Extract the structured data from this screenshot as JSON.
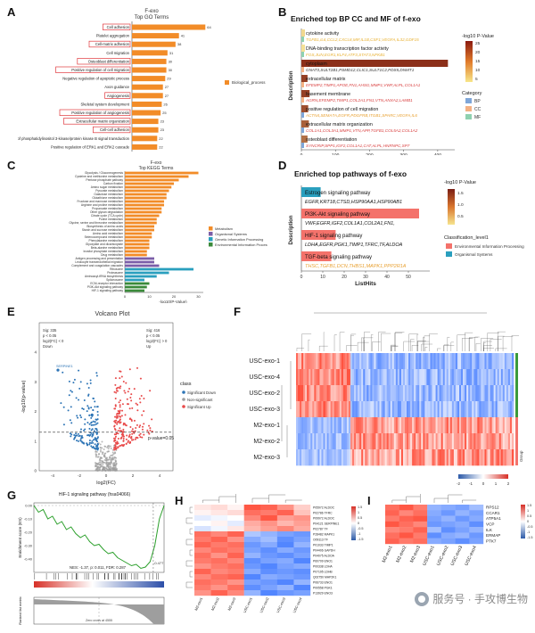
{
  "panel_labels": {
    "A": "A",
    "B": "B",
    "C": "C",
    "D": "D",
    "E": "E",
    "F": "F",
    "G": "G",
    "H": "H",
    "I": "I"
  },
  "watermark": "服务号 · 手攻博生物",
  "chart_data": [
    {
      "id": "A",
      "type": "bar",
      "title": "F-exo\nTop GO Terms",
      "legend": [
        "Biological_process"
      ],
      "color": "#f28c28",
      "categories": [
        "Cell adhesion",
        "Platelet aggregation",
        "Cell-matrix adhesion",
        "Cell migration",
        "Osteoblast differentiation",
        "Positive regulation of cell migration",
        "Negative regulation of apoptotic process",
        "Axon guidance",
        "Angiogenesis",
        "Skeletal system development",
        "Positive regulation of angiogenesis",
        "Extracellular matrix organization",
        "Cell-cell adhesion",
        "Regulation of phosphatidylinositol 3-kinase/protein kinase B signal transduction",
        "Positive regulation of ERK1 and ERK2 cascade"
      ],
      "values": [
        64,
        41,
        38,
        31,
        30,
        30,
        29,
        27,
        27,
        26,
        25,
        23,
        23,
        22,
        22
      ],
      "boxed": [
        0,
        2,
        4,
        5,
        8,
        10,
        11,
        12
      ]
    },
    {
      "id": "B",
      "type": "bar",
      "title": "Enriched top BP CC and MF of f-exo",
      "xlabel": "ListHits",
      "ylabel": "Description",
      "xlim": [
        0,
        450
      ],
      "xticks": [
        0,
        100,
        200,
        300,
        400
      ],
      "legend_title": "-log10 P-Value",
      "legend_ticks": [
        "25",
        "20",
        "15",
        "10",
        "5"
      ],
      "category_title": "Category",
      "category_labels": [
        "BP",
        "CC",
        "MF"
      ],
      "category_colors": [
        "#7fa6d8",
        "#f4b183",
        "#8fd1b0"
      ],
      "terms": [
        "cytokine activity",
        "DNA-binding transcription factor activity",
        "cytoplasm",
        "extracellular matrix",
        "basement membrane",
        "positive regulation of cell migration",
        "extracellular matrix organization",
        "osteoblast differentiation"
      ],
      "genes": [
        "TGFB1,IL6,CCL2,CXCL8,MIF,IL1B,CSF1,VEGFA,IL32,GDF15",
        "FOS,JUN,EGR1,KLF4,ATF3,STAT3,NFKB1",
        "GNAT3,SULT2B1,PSMD12,CLIC1,SULT1C2,PDS5,DNMT1",
        "EFEMP2,TIMP1,APOE,FN1,AHSG,MMP1,VWF,ALPL,COL1A1",
        "AGRN,EFEMP2,TIMP1,COL2A1,FN1,VTN,ANXA2,LAMB1",
        "ACTN4,SEMA7A,EGFR,PDGFRB,ITGB1,SPARC,VEGFA,IL6",
        "COL1A1,COL3A1,MMP1,VTN,APP,TGFB1,COL5A2,COL1A2",
        "SYNCRIP,SPP1,IGF2,COL1A1,CAT,ALPL,HNRNPC,SP7"
      ],
      "values": [
        4,
        6,
        430,
        18,
        24,
        20,
        22,
        18
      ],
      "neglog_p": [
        3,
        2,
        24,
        22,
        22,
        20,
        18,
        16
      ],
      "category": [
        2,
        2,
        1,
        1,
        1,
        0,
        0,
        0
      ]
    },
    {
      "id": "C",
      "type": "bar",
      "title": "F-exo\nTop KEGG Terms",
      "xlabel": "-log10(P-Value)",
      "xticks": [
        "0",
        "10",
        "20",
        "30"
      ],
      "legend_labels": [
        "Metabolism",
        "Organismal Systems",
        "Genetic Information Processing",
        "Environmental Information Processing"
      ],
      "legend_colors": [
        "#f28c28",
        "#7b5ea8",
        "#2a9fbe",
        "#3a8a3a"
      ],
      "categories": [
        "Glycolysis / Gluconeogenesis",
        "Cysteine and methionine metabolism",
        "Pentose phosphate pathway",
        "Carbon fixation",
        "Amino sugar metabolism",
        "Pyruvate metabolism",
        "Galactose metabolism",
        "Glutathione metabolism",
        "Fructose and mannose metabolism",
        "Arginine and proline metabolism",
        "Propanoate metabolism",
        "Other glycan degradation",
        "Citrate cycle (TCA cycle)",
        "Purine metabolism",
        "Glycine, serine and threonine metabolism",
        "Biosynthesis of amino acids",
        "Starch and sucrose metabolism",
        "Amino acid metabolism",
        "Selenocompound metabolism",
        "Phenylalanine metabolism",
        "Glyoxylate and dicarboxylate",
        "Beta-alanine metabolism",
        "Inositol phosphate metabolism",
        "Drug metabolism",
        "Antigen processing and presentation",
        "Leukocyte transendothelial migration",
        "Complement and coagulation cascades",
        "Ribosome",
        "Proteasome",
        "Aminoacyl-tRNA biosynthesis",
        "Spliceosome",
        "ECM-receptor interaction",
        "PI3K-Akt signaling pathway",
        "HIF-1 signaling pathway"
      ],
      "values": [
        30,
        26,
        22,
        20,
        19,
        18,
        17,
        17,
        16,
        16,
        15,
        15,
        14,
        13,
        13,
        12,
        12,
        11,
        11,
        10,
        10,
        10,
        9,
        9,
        12,
        12,
        14,
        28,
        18,
        13,
        8,
        10,
        9,
        8
      ],
      "group": [
        0,
        0,
        0,
        0,
        0,
        0,
        0,
        0,
        0,
        0,
        0,
        0,
        0,
        0,
        0,
        0,
        0,
        0,
        0,
        0,
        0,
        0,
        0,
        0,
        1,
        1,
        1,
        2,
        2,
        2,
        2,
        3,
        3,
        3
      ]
    },
    {
      "id": "D",
      "type": "bar",
      "title": "Enriched top pathways of f-exo",
      "xlabel": "ListHits",
      "ylabel": "Description",
      "xlim": [
        0,
        60
      ],
      "xticks": [
        0,
        10,
        20,
        30,
        40,
        50
      ],
      "legend_title": "-log10 P-Value",
      "legend_ticks": [
        "1.5",
        "1.0",
        "0.5"
      ],
      "class_title": "Classification_level1",
      "class_labels": [
        "Environmental Information Processing",
        "Organismal Systems"
      ],
      "class_colors": [
        "#f4726b",
        "#2a9fbe"
      ],
      "terms": [
        "Estrogen signaling pathway",
        "PI3K-Akt signaling pathway",
        "HIF-1 signaling pathway",
        "TGF-beta signaling pathway"
      ],
      "genes": [
        "EGFR,KRT18,CTSD,HSP90AA1,HSP90AB1",
        "VWF,EGFR,IGF2,COL1A1,COL2A1,FN1,",
        "LDHA,EGFR,PGK1,TIMP1,TFRC,TF,ALDOA",
        "THSC,TGFB1,DCN,THBS1,MAPK1,PPP2R1A"
      ],
      "values": [
        9,
        55,
        16,
        14
      ],
      "class": [
        1,
        0,
        0,
        0
      ]
    },
    {
      "id": "E",
      "type": "scatter",
      "title": "Volcano Plot",
      "xlabel": "log2(FC)",
      "ylabel": "-log10(p-value)",
      "xlim": [
        -5,
        5
      ],
      "ylim": [
        0,
        5
      ],
      "left_box": [
        "Sig: 335",
        "p < 0.05",
        "log2(FC) < 0",
        "Down"
      ],
      "right_box": [
        "Sig: 416",
        "p < 0.05",
        "log2(FC) > 0",
        "Up"
      ],
      "threshold_label": "p-value=0.05",
      "legend_title": "class",
      "legend_labels": [
        "Significant Down",
        "Non-significant",
        "Significant Up"
      ],
      "legend_colors": [
        "#2e75b6",
        "#9e9e9e",
        "#e84a4a"
      ],
      "annotated_gene": "SERPINE1",
      "down_count": 335,
      "up_count": 416
    },
    {
      "id": "F",
      "type": "heatmap",
      "rows": [
        "USC-exo-1",
        "USC-exo-4",
        "USC-exo-2",
        "USC-exo-3",
        "M2-exo-1",
        "M2-exo-2",
        "M2-exo-3"
      ],
      "scale_ticks": [
        "-2",
        "-1",
        "0",
        "1",
        "2"
      ],
      "group_label": "Group"
    },
    {
      "id": "G",
      "type": "line",
      "title": "HIF-1 signaling pathway (hsa04066)",
      "ylabel": "Enrichment score (ES)",
      "ylabel2": "Ranked list metric",
      "stats": "NES: -1.37, p: 0.011, FDR: 0.287",
      "es_min": "-0.477",
      "yticks": [
        "0.00",
        "-0.10",
        "-0.20",
        "-0.30",
        "-0.40"
      ],
      "bottom_label": "Zero cross at 4555",
      "es_curve": [
        0,
        -0.05,
        -0.03,
        -0.1,
        -0.08,
        -0.14,
        -0.12,
        -0.18,
        -0.16,
        -0.21,
        -0.24,
        -0.22,
        -0.27,
        -0.3,
        -0.29,
        -0.33,
        -0.36,
        -0.35,
        -0.39,
        -0.41,
        -0.43,
        -0.45,
        -0.44,
        -0.47,
        -0.46,
        -0.42,
        -0.3,
        -0.1,
        0.0
      ]
    },
    {
      "id": "H",
      "type": "heatmap",
      "rows": [
        "P05972 ALDOC",
        "P02786 TFRC",
        "P09972 ALDOC",
        "P04121 SERPINE1",
        "P02787 TF",
        "P28482 MAPK1",
        "O09113 TF",
        "P01033 TIMP1",
        "P04406 GAPDH",
        "P04075 ALDOA",
        "P60709 ENO1",
        "P00338 LDHA",
        "P07195 LDHB",
        "Q02750 MAP2K1",
        "P06733 ENO1",
        "P00558 PGK1",
        "P13929 ENO3"
      ],
      "cols": [
        "M2-exo1",
        "M2-exo2",
        "M2-exo3",
        "USC-exo1",
        "USC-exo2",
        "USC-exo3",
        "USC-exo4"
      ],
      "scale_ticks": [
        "1.5",
        "1",
        "0.5",
        "0",
        "-0.5",
        "-1",
        "-1.5"
      ],
      "values": [
        [
          0.2,
          0.3,
          0.1,
          1.4,
          1.3,
          0.9,
          0.4
        ],
        [
          0.1,
          0.2,
          0.3,
          1.2,
          1.1,
          1.3,
          0.5
        ],
        [
          -0.2,
          -0.1,
          0.0,
          1.0,
          1.4,
          0.8,
          0.9
        ],
        [
          0.0,
          0.1,
          -0.2,
          0.7,
          0.9,
          0.6,
          0.8
        ],
        [
          -0.3,
          -0.1,
          0.2,
          0.6,
          0.8,
          1.0,
          0.7
        ],
        [
          1.2,
          1.0,
          1.3,
          -0.6,
          -0.8,
          -1.0,
          -1.1
        ],
        [
          1.1,
          1.3,
          0.9,
          -0.9,
          -0.7,
          -1.2,
          -1.0
        ],
        [
          1.3,
          1.1,
          1.2,
          -1.1,
          -0.9,
          -1.3,
          -0.8
        ],
        [
          1.0,
          1.2,
          1.1,
          -1.0,
          -1.2,
          -0.9,
          -1.1
        ],
        [
          1.2,
          0.9,
          1.3,
          -0.8,
          -1.1,
          -1.2,
          -1.0
        ],
        [
          1.1,
          1.2,
          1.0,
          -1.2,
          -1.0,
          -0.9,
          -1.3
        ],
        [
          0.9,
          1.1,
          1.2,
          -1.1,
          -1.3,
          -1.0,
          -0.9
        ],
        [
          1.3,
          1.0,
          1.1,
          -0.9,
          -1.2,
          -1.1,
          -1.2
        ],
        [
          1.0,
          1.2,
          1.3,
          -1.3,
          -0.9,
          -1.0,
          -1.1
        ],
        [
          1.2,
          1.1,
          0.9,
          -1.0,
          -1.1,
          -1.3,
          -0.8
        ],
        [
          1.1,
          0.9,
          1.2,
          -1.2,
          -1.0,
          -0.8,
          -1.3
        ],
        [
          0.9,
          1.3,
          1.0,
          -0.8,
          -1.3,
          -1.1,
          -1.0
        ]
      ]
    },
    {
      "id": "I",
      "type": "heatmap",
      "rows": [
        "RPS12",
        "CCAR1",
        "ATP5A1",
        "VCP",
        "ILK",
        "ERMAP",
        "PTK7"
      ],
      "cols": [
        "M2-exo1",
        "M2-exo2",
        "M2-exo3",
        "USC-exo1",
        "USC-exo2",
        "USC-exo3",
        "USC-exo4"
      ],
      "scale_ticks": [
        "1.5",
        "1",
        "0.5",
        "0",
        "-0.5",
        "-1",
        "-1.5"
      ],
      "values": [
        [
          1.2,
          1.4,
          1.1,
          -0.8,
          -0.9,
          -1.0,
          -0.7
        ],
        [
          1.3,
          1.0,
          1.2,
          -0.9,
          -1.1,
          -0.8,
          -1.0
        ],
        [
          1.1,
          1.3,
          1.4,
          -1.0,
          -0.8,
          -1.1,
          -0.9
        ],
        [
          1.4,
          1.2,
          1.0,
          -1.1,
          -1.0,
          -0.9,
          -1.2
        ],
        [
          1.0,
          1.1,
          1.3,
          -0.7,
          -1.2,
          -1.0,
          -0.8
        ],
        [
          1.2,
          1.4,
          1.1,
          -1.2,
          -0.9,
          -0.8,
          -1.1
        ],
        [
          1.3,
          1.1,
          1.2,
          -0.9,
          -1.0,
          -1.2,
          -1.0
        ]
      ]
    }
  ]
}
